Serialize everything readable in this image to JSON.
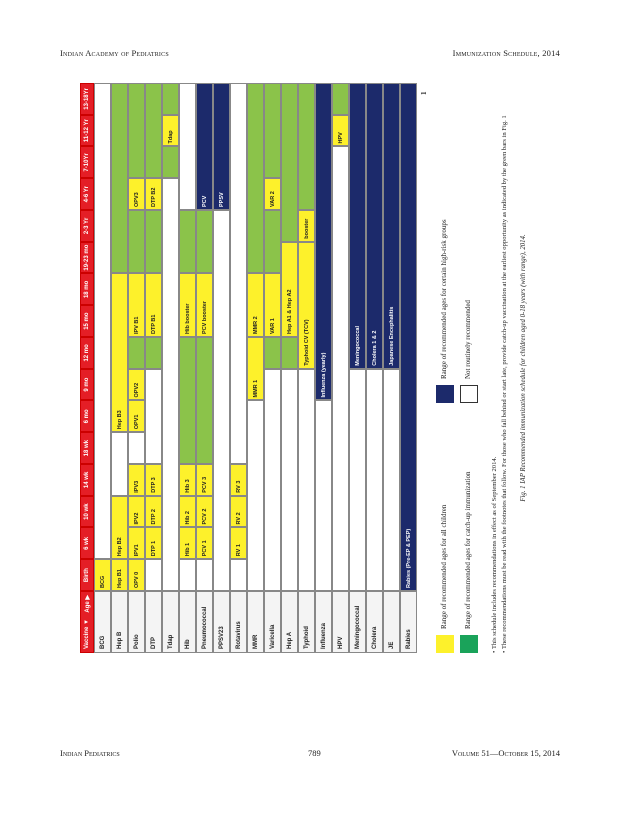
{
  "header": {
    "left": "Indian Academy of Pediatrics",
    "right": "Immunization Schedule, 2014"
  },
  "footer": {
    "left": "Indian Pediatrics",
    "center": "789",
    "right": "Volume 51—October 15, 2014"
  },
  "page_number": "1",
  "table": {
    "corner_top": "Age ▶",
    "corner_bottom": "Vaccine ▼",
    "columns": [
      "Birth",
      "6 wk",
      "10 wk",
      "14 wk",
      "18 wk",
      "6 mo",
      "9 mo",
      "12 mo",
      "15 mo",
      "18 mo",
      "19-23 mo",
      "2-3 Yr",
      "4-6 Yr",
      "7-10Yr",
      "11-12 Yr",
      "13-18Yr"
    ],
    "rows": [
      {
        "name": "BCG",
        "cells": [
          {
            "s": 0,
            "e": 1,
            "c": "y",
            "t": "BCG"
          },
          {
            "s": 1,
            "e": 16,
            "c": "w",
            "t": ""
          }
        ]
      },
      {
        "name": "Hep B",
        "cells": [
          {
            "s": 0,
            "e": 1,
            "c": "y",
            "t": "Hep B1"
          },
          {
            "s": 1,
            "e": 3,
            "c": "y",
            "t": "Hep B2"
          },
          {
            "s": 3,
            "e": 5,
            "c": "w",
            "t": ""
          },
          {
            "s": 5,
            "e": 10,
            "c": "y",
            "t": "Hep B3"
          },
          {
            "s": 10,
            "e": 16,
            "c": "g",
            "t": ""
          }
        ]
      },
      {
        "name": "Polio",
        "cells": [
          {
            "s": 0,
            "e": 1,
            "c": "y",
            "t": "OPV 0"
          },
          {
            "s": 1,
            "e": 2,
            "c": "y",
            "t": "IPV1"
          },
          {
            "s": 2,
            "e": 3,
            "c": "y",
            "t": "IPV2"
          },
          {
            "s": 3,
            "e": 4,
            "c": "y",
            "t": "IPV3"
          },
          {
            "s": 4,
            "e": 5,
            "c": "w",
            "t": ""
          },
          {
            "s": 5,
            "e": 6,
            "c": "y",
            "t": "OPV1"
          },
          {
            "s": 6,
            "e": 7,
            "c": "y",
            "t": "OPV2"
          },
          {
            "s": 7,
            "e": 8,
            "c": "g",
            "t": ""
          },
          {
            "s": 8,
            "e": 10,
            "c": "y",
            "t": "IPV B1"
          },
          {
            "s": 10,
            "e": 12,
            "c": "g",
            "t": ""
          },
          {
            "s": 12,
            "e": 13,
            "c": "y",
            "t": "OPV3"
          },
          {
            "s": 13,
            "e": 16,
            "c": "g",
            "t": ""
          }
        ]
      },
      {
        "name": "DTP",
        "cells": [
          {
            "s": 0,
            "e": 1,
            "c": "w",
            "t": ""
          },
          {
            "s": 1,
            "e": 2,
            "c": "y",
            "t": "DTP 1"
          },
          {
            "s": 2,
            "e": 3,
            "c": "y",
            "t": "DTP 2"
          },
          {
            "s": 3,
            "e": 4,
            "c": "y",
            "t": "DTP 3"
          },
          {
            "s": 4,
            "e": 7,
            "c": "w",
            "t": ""
          },
          {
            "s": 7,
            "e": 8,
            "c": "g",
            "t": ""
          },
          {
            "s": 8,
            "e": 10,
            "c": "y",
            "t": "DTP B1"
          },
          {
            "s": 10,
            "e": 12,
            "c": "g",
            "t": ""
          },
          {
            "s": 12,
            "e": 13,
            "c": "y",
            "t": "DTP B2"
          },
          {
            "s": 13,
            "e": 16,
            "c": "g",
            "t": ""
          }
        ]
      },
      {
        "name": "Tdap",
        "cells": [
          {
            "s": 0,
            "e": 13,
            "c": "w",
            "t": ""
          },
          {
            "s": 13,
            "e": 14,
            "c": "g",
            "t": ""
          },
          {
            "s": 14,
            "e": 15,
            "c": "y",
            "t": "Tdap"
          },
          {
            "s": 15,
            "e": 16,
            "c": "g",
            "t": ""
          }
        ]
      },
      {
        "name": "Hib",
        "cells": [
          {
            "s": 0,
            "e": 1,
            "c": "w",
            "t": ""
          },
          {
            "s": 1,
            "e": 2,
            "c": "y",
            "t": "Hib 1"
          },
          {
            "s": 2,
            "e": 3,
            "c": "y",
            "t": "Hib 2"
          },
          {
            "s": 3,
            "e": 4,
            "c": "y",
            "t": "Hib 3"
          },
          {
            "s": 4,
            "e": 8,
            "c": "g",
            "t": ""
          },
          {
            "s": 8,
            "e": 10,
            "c": "y",
            "t": "Hib booster"
          },
          {
            "s": 10,
            "e": 12,
            "c": "g",
            "t": ""
          },
          {
            "s": 12,
            "e": 16,
            "c": "w",
            "t": ""
          }
        ]
      },
      {
        "name": "Pneumococcal",
        "cells": [
          {
            "s": 0,
            "e": 1,
            "c": "w",
            "t": ""
          },
          {
            "s": 1,
            "e": 2,
            "c": "y",
            "t": "PCV 1"
          },
          {
            "s": 2,
            "e": 3,
            "c": "y",
            "t": "PCV 2"
          },
          {
            "s": 3,
            "e": 4,
            "c": "y",
            "t": "PCV 3"
          },
          {
            "s": 4,
            "e": 8,
            "c": "g",
            "t": ""
          },
          {
            "s": 8,
            "e": 10,
            "c": "y",
            "t": "PCV booster"
          },
          {
            "s": 10,
            "e": 12,
            "c": "g",
            "t": ""
          },
          {
            "s": 12,
            "e": 16,
            "c": "n",
            "t": "PCV"
          }
        ]
      },
      {
        "name": "PPSV23",
        "cells": [
          {
            "s": 0,
            "e": 12,
            "c": "w",
            "t": ""
          },
          {
            "s": 12,
            "e": 16,
            "c": "n",
            "t": "PPSV"
          }
        ]
      },
      {
        "name": "Rotavirus",
        "cells": [
          {
            "s": 0,
            "e": 1,
            "c": "w",
            "t": ""
          },
          {
            "s": 1,
            "e": 2,
            "c": "y",
            "t": "RV 1"
          },
          {
            "s": 2,
            "e": 3,
            "c": "y",
            "t": "RV 2"
          },
          {
            "s": 3,
            "e": 4,
            "c": "y",
            "t": "RV 3"
          },
          {
            "s": 4,
            "e": 16,
            "c": "w",
            "t": ""
          }
        ]
      },
      {
        "name": "MMR",
        "cells": [
          {
            "s": 0,
            "e": 6,
            "c": "w",
            "t": ""
          },
          {
            "s": 6,
            "e": 8,
            "c": "y",
            "t": "MMR 1"
          },
          {
            "s": 8,
            "e": 10,
            "c": "y",
            "t": "MMR 2"
          },
          {
            "s": 10,
            "e": 16,
            "c": "g",
            "t": ""
          }
        ]
      },
      {
        "name": "Varicella",
        "cells": [
          {
            "s": 0,
            "e": 7,
            "c": "w",
            "t": ""
          },
          {
            "s": 7,
            "e": 8,
            "c": "g",
            "t": ""
          },
          {
            "s": 8,
            "e": 10,
            "c": "y",
            "t": "VAR 1"
          },
          {
            "s": 10,
            "e": 12,
            "c": "g",
            "t": ""
          },
          {
            "s": 12,
            "e": 13,
            "c": "y",
            "t": "VAR 2"
          },
          {
            "s": 13,
            "e": 16,
            "c": "g",
            "t": ""
          }
        ]
      },
      {
        "name": "Hep A",
        "cells": [
          {
            "s": 0,
            "e": 7,
            "c": "w",
            "t": ""
          },
          {
            "s": 7,
            "e": 8,
            "c": "g",
            "t": ""
          },
          {
            "s": 8,
            "e": 11,
            "c": "y",
            "t": "Hep A1 & Hep A2"
          },
          {
            "s": 11,
            "e": 16,
            "c": "g",
            "t": ""
          }
        ]
      },
      {
        "name": "Typhoid",
        "cells": [
          {
            "s": 0,
            "e": 7,
            "c": "w",
            "t": ""
          },
          {
            "s": 7,
            "e": 11,
            "c": "y",
            "t": "Typhoid CV (TCV)"
          },
          {
            "s": 11,
            "e": 12,
            "c": "y",
            "t": "booster"
          },
          {
            "s": 12,
            "e": 16,
            "c": "g",
            "t": ""
          }
        ]
      },
      {
        "name": "Influenza",
        "cells": [
          {
            "s": 0,
            "e": 6,
            "c": "w",
            "t": ""
          },
          {
            "s": 6,
            "e": 16,
            "c": "n",
            "t": "Influenza (yearly)"
          }
        ]
      },
      {
        "name": "HPV",
        "cells": [
          {
            "s": 0,
            "e": 14,
            "c": "w",
            "t": ""
          },
          {
            "s": 14,
            "e": 15,
            "c": "y",
            "t": "HPV"
          },
          {
            "s": 15,
            "e": 16,
            "c": "g",
            "t": ""
          }
        ]
      },
      {
        "name": "Meningococcal",
        "cells": [
          {
            "s": 0,
            "e": 7,
            "c": "w",
            "t": ""
          },
          {
            "s": 7,
            "e": 16,
            "c": "n",
            "t": "Meningococcal"
          }
        ]
      },
      {
        "name": "Cholera",
        "cells": [
          {
            "s": 0,
            "e": 7,
            "c": "w",
            "t": ""
          },
          {
            "s": 7,
            "e": 16,
            "c": "n",
            "t": "Cholera 1 & 2"
          }
        ]
      },
      {
        "name": "JE",
        "cells": [
          {
            "s": 0,
            "e": 7,
            "c": "w",
            "t": ""
          },
          {
            "s": 7,
            "e": 16,
            "c": "n",
            "t": "Japanese Encephalitis"
          }
        ]
      },
      {
        "name": "Rabies",
        "cells": [
          {
            "s": 0,
            "e": 16,
            "c": "n",
            "t": "Rabies (Pre-EP & PEP)"
          }
        ]
      }
    ]
  },
  "legend": {
    "yellow": "Range of recommended ages for all children",
    "green": "Range of recommended ages for catch-up immunization",
    "navy": "Range of recommended ages for certain high-risk groups",
    "white": "Not routinely recommended"
  },
  "notes": [
    "• This schedule includes recommendations in effect as of September 2014.",
    "• These recommendations must be read with the footnotes that follow. For those who fall behind or start late, provide catch-up vaccination at the earliest opportunity as indicated by the green bars in Fig. 1"
  ],
  "caption": "Fig. 1 IAP Recommended immunization schedule for children aged 0-18 years (with range), 2014.",
  "colors": {
    "y": "#fdf12b",
    "g": "#8bc34a",
    "n": "#1c2a6b",
    "w": "#ffffff",
    "header": "#e41e26"
  }
}
